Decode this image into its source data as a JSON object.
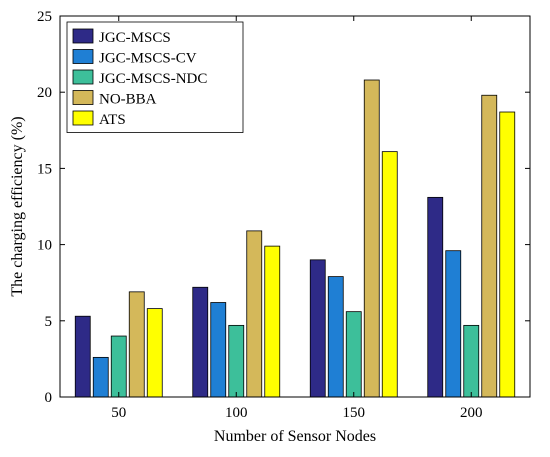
{
  "chart_data": {
    "type": "bar",
    "xlabel": "Number of Sensor Nodes",
    "ylabel": "The charging efficiency (%)",
    "categories": [
      "50",
      "100",
      "150",
      "200"
    ],
    "ylim": [
      0,
      25
    ],
    "yticks": [
      "0",
      "5",
      "10",
      "15",
      "20",
      "25"
    ],
    "grid": false,
    "legend_position": "top-left",
    "series": [
      {
        "name": "JGC-MSCS",
        "color": "#2e2a87",
        "values": [
          5.3,
          7.2,
          9.0,
          13.1
        ]
      },
      {
        "name": "JGC-MSCS-CV",
        "color": "#1f7fd4",
        "values": [
          2.6,
          6.2,
          7.9,
          9.6
        ]
      },
      {
        "name": "JGC-MSCS-NDC",
        "color": "#3dbf9a",
        "values": [
          4.0,
          4.7,
          5.6,
          4.7
        ]
      },
      {
        "name": "NO-BBA",
        "color": "#d4b85a",
        "values": [
          6.9,
          10.9,
          20.8,
          19.8
        ]
      },
      {
        "name": "ATS",
        "color": "#ffff00",
        "values": [
          5.8,
          9.9,
          16.1,
          18.7
        ]
      }
    ]
  }
}
